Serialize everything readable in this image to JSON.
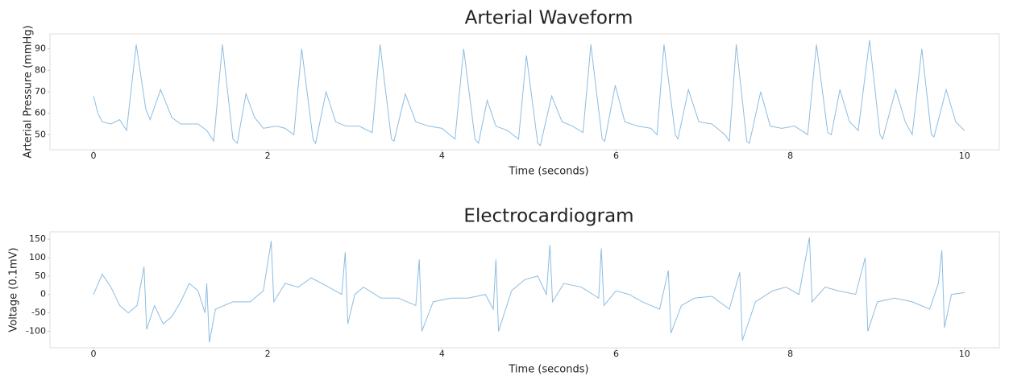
{
  "chart_data": [
    {
      "type": "line",
      "title": "Arterial Waveform",
      "x_label": "Time (seconds)",
      "y_label": "Arterial Pressure (mmHg)",
      "xlim": [
        -0.5,
        10.4
      ],
      "ylim": [
        43,
        97
      ],
      "xticks": [
        0,
        2,
        4,
        6,
        8,
        10
      ],
      "yticks": [
        50,
        60,
        70,
        80,
        90
      ],
      "grid": false,
      "series": [
        {
          "color": "#8dbde0",
          "x": [
            0.0,
            0.05,
            0.1,
            0.2,
            0.3,
            0.38,
            0.49,
            0.6,
            0.65,
            0.77,
            0.9,
            1.0,
            1.2,
            1.3,
            1.38,
            1.48,
            1.6,
            1.65,
            1.75,
            1.85,
            1.95,
            2.1,
            2.2,
            2.3,
            2.39,
            2.52,
            2.55,
            2.67,
            2.78,
            2.9,
            3.05,
            3.2,
            3.29,
            3.42,
            3.45,
            3.58,
            3.7,
            3.85,
            4.0,
            4.15,
            4.25,
            4.38,
            4.42,
            4.52,
            4.62,
            4.75,
            4.88,
            4.97,
            5.1,
            5.13,
            5.26,
            5.38,
            5.5,
            5.62,
            5.71,
            5.84,
            5.87,
            5.99,
            6.1,
            6.25,
            6.4,
            6.47,
            6.55,
            6.68,
            6.71,
            6.83,
            6.95,
            7.1,
            7.25,
            7.3,
            7.38,
            7.5,
            7.53,
            7.66,
            7.77,
            7.9,
            8.05,
            8.2,
            8.3,
            8.43,
            8.47,
            8.57,
            8.68,
            8.78,
            8.91,
            9.03,
            9.06,
            9.21,
            9.32,
            9.4,
            9.51,
            9.62,
            9.65,
            9.79,
            9.9,
            10.0
          ],
          "values": [
            68,
            60,
            56,
            55,
            57,
            52,
            92,
            62,
            57,
            71,
            58,
            55,
            55,
            52,
            47,
            92,
            48,
            46,
            69,
            58,
            53,
            54,
            53,
            50,
            90,
            48,
            46,
            70,
            56,
            54,
            54,
            51,
            92,
            48,
            47,
            69,
            56,
            54,
            53,
            48,
            90,
            48,
            46,
            66,
            54,
            52,
            48,
            87,
            46,
            45,
            68,
            56,
            54,
            51,
            92,
            48,
            47,
            73,
            56,
            54,
            53,
            50,
            92,
            50,
            48,
            71,
            56,
            55,
            50,
            47,
            92,
            47,
            46,
            70,
            54,
            53,
            54,
            50,
            92,
            51,
            50,
            71,
            56,
            52,
            94,
            50,
            48,
            71,
            56,
            50,
            90,
            50,
            49,
            71,
            56,
            52
          ]
        }
      ]
    },
    {
      "type": "line",
      "title": "Electrocardiogram",
      "x_label": "Time (seconds)",
      "y_label": "Voltage (0.1mV)",
      "xlim": [
        -0.5,
        10.4
      ],
      "ylim": [
        -145,
        170
      ],
      "xticks": [
        0,
        2,
        4,
        6,
        8,
        10
      ],
      "yticks": [
        -100,
        -50,
        0,
        50,
        100,
        150
      ],
      "grid": false,
      "series": [
        {
          "color": "#8dbde0",
          "x": [
            0.0,
            0.1,
            0.2,
            0.3,
            0.4,
            0.5,
            0.58,
            0.61,
            0.7,
            0.8,
            0.9,
            1.0,
            1.1,
            1.2,
            1.28,
            1.3,
            1.33,
            1.4,
            1.6,
            1.8,
            1.95,
            2.04,
            2.07,
            2.2,
            2.35,
            2.5,
            2.7,
            2.85,
            2.89,
            2.92,
            3.0,
            3.1,
            3.3,
            3.5,
            3.7,
            3.74,
            3.77,
            3.9,
            4.1,
            4.3,
            4.5,
            4.59,
            4.62,
            4.65,
            4.8,
            4.95,
            5.1,
            5.2,
            5.24,
            5.27,
            5.4,
            5.6,
            5.8,
            5.83,
            5.86,
            6.0,
            6.15,
            6.3,
            6.5,
            6.6,
            6.63,
            6.75,
            6.9,
            7.1,
            7.3,
            7.42,
            7.45,
            7.6,
            7.8,
            7.95,
            8.1,
            8.22,
            8.25,
            8.4,
            8.55,
            8.75,
            8.86,
            8.89,
            9.0,
            9.2,
            9.4,
            9.6,
            9.7,
            9.74,
            9.77,
            9.85,
            10.0
          ],
          "values": [
            0,
            55,
            20,
            -30,
            -50,
            -30,
            75,
            -95,
            -30,
            -80,
            -60,
            -20,
            30,
            10,
            -50,
            30,
            -130,
            -40,
            -20,
            -20,
            10,
            145,
            -20,
            30,
            20,
            45,
            20,
            0,
            115,
            -80,
            0,
            20,
            -10,
            -10,
            -30,
            95,
            -100,
            -20,
            -10,
            -10,
            0,
            -40,
            95,
            -100,
            10,
            40,
            50,
            0,
            135,
            -20,
            30,
            20,
            -10,
            125,
            -30,
            10,
            0,
            -20,
            -40,
            65,
            -105,
            -30,
            -10,
            -5,
            -40,
            60,
            -125,
            -20,
            10,
            20,
            0,
            155,
            -20,
            20,
            10,
            0,
            100,
            -100,
            -20,
            -10,
            -20,
            -40,
            30,
            120,
            -90,
            0,
            5
          ]
        }
      ]
    }
  ]
}
